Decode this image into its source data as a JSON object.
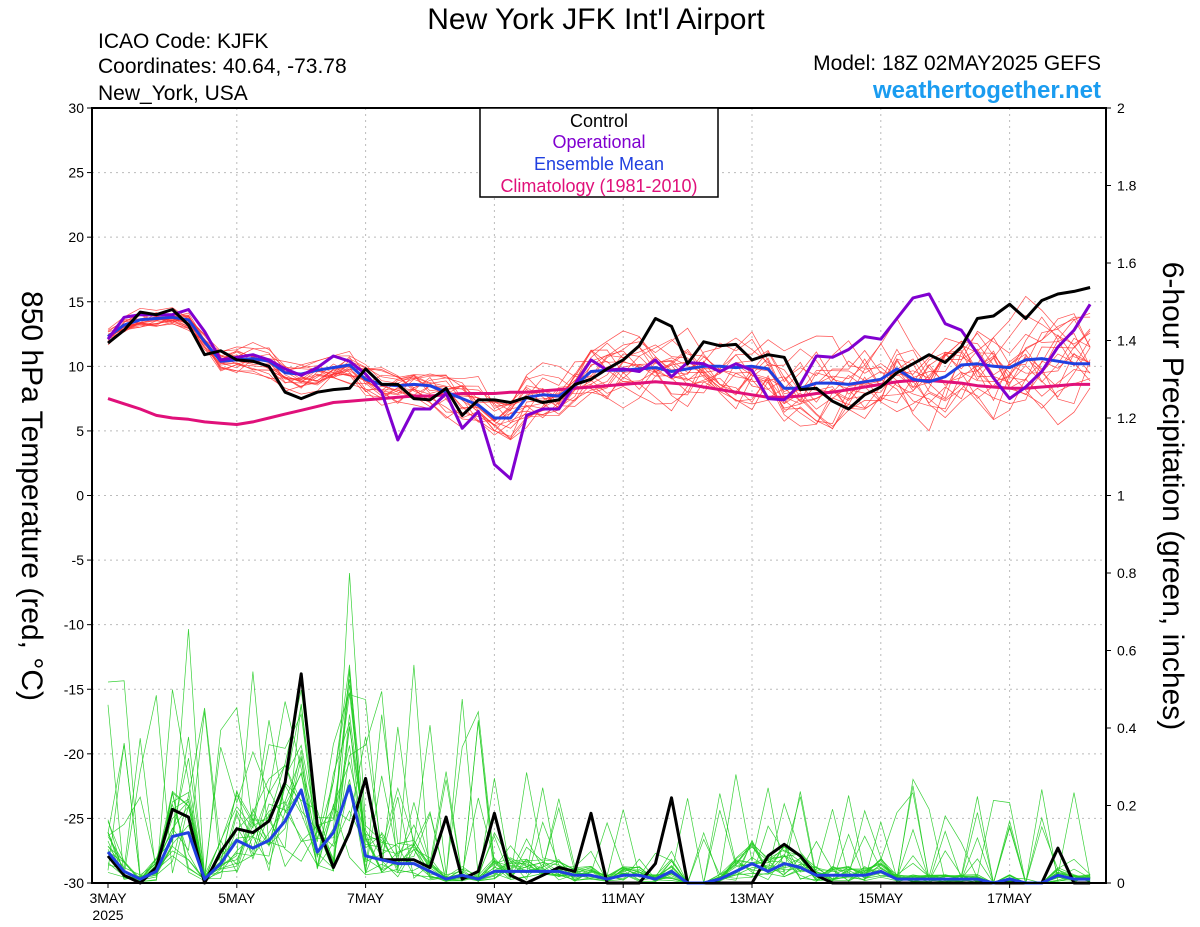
{
  "header": {
    "title": "New York JFK Int'l Airport",
    "icao": "ICAO Code: KJFK",
    "coords": "Coordinates: 40.64, -73.78",
    "location": "New_York, USA",
    "model": "Model: 18Z 02MAY2025 GEFS",
    "site": "weathertogether.net"
  },
  "colors": {
    "control": "#000000",
    "operational": "#8000d0",
    "mean": "#2040e0",
    "climatology": "#e0107a",
    "members_temp": "#ff3030",
    "members_precip": "#22cc22",
    "site": "#1a9cf0"
  },
  "chart_data": {
    "type": "line",
    "title": "New York JFK Int'l Airport",
    "ylabel_left": "850 hPa Temperature (red, °C)",
    "ylabel_right": "6-hour Precipitation (green, inches)",
    "x_start": "2025-05-03",
    "x_step_hours": 6,
    "ylim_left": [
      -30,
      30
    ],
    "yticks_left": [
      "30",
      "25",
      "20",
      "15",
      "10",
      "5",
      "0",
      "-5",
      "-10",
      "-15",
      "-20",
      "-25",
      "-30"
    ],
    "ylim_right": [
      0,
      2
    ],
    "yticks_right": [
      "2",
      "1.8",
      "1.6",
      "1.4",
      "1.2",
      "1",
      "0.8",
      "0.6",
      "0.4",
      "0.2",
      "0"
    ],
    "xticks": [
      {
        "label": "3MAY",
        "sub": "2025"
      },
      {
        "label": "5MAY",
        "sub": ""
      },
      {
        "label": "7MAY",
        "sub": ""
      },
      {
        "label": "9MAY",
        "sub": ""
      },
      {
        "label": "11MAY",
        "sub": ""
      },
      {
        "label": "13MAY",
        "sub": ""
      },
      {
        "label": "15MAY",
        "sub": ""
      },
      {
        "label": "17MAY",
        "sub": ""
      }
    ],
    "grid": true,
    "legend_position": "top-center",
    "legend": [
      {
        "label": "Control",
        "color": "#000000"
      },
      {
        "label": "Operational",
        "color": "#8000d0"
      },
      {
        "label": "Ensemble Mean",
        "color": "#2040e0"
      },
      {
        "label": "Climatology (1981-2010)",
        "color": "#e0107a"
      }
    ],
    "series": [
      {
        "name": "Control",
        "axis": "left",
        "values": [
          11.8,
          12.8,
          14.2,
          14.0,
          14.4,
          13.2,
          10.9,
          11.2,
          10.5,
          10.4,
          10.0,
          8.0,
          7.5,
          8.0,
          8.2,
          8.3,
          9.8,
          8.6,
          8.6,
          7.5,
          7.4,
          8.3,
          6.2,
          7.4,
          7.4,
          7.2,
          7.6,
          7.2,
          7.4,
          8.6,
          9.0,
          9.8,
          10.5,
          11.6,
          13.7,
          13.1,
          10.2,
          11.9,
          11.6,
          11.7,
          10.5,
          10.9,
          10.7,
          8.2,
          8.3,
          7.3,
          6.7,
          7.8,
          8.4,
          9.5,
          10.2,
          10.9,
          10.3,
          11.5,
          13.7,
          13.9,
          14.8,
          13.7,
          15.1,
          15.6,
          15.8,
          16.1
        ]
      },
      {
        "name": "Operational",
        "axis": "left",
        "values": [
          12.1,
          13.8,
          14.0,
          14.0,
          14.0,
          14.4,
          12.7,
          10.5,
          10.7,
          10.9,
          10.5,
          9.8,
          9.3,
          9.9,
          10.8,
          10.4,
          9.4,
          8.0,
          4.3,
          6.7,
          6.7,
          7.9,
          5.2,
          6.5,
          2.4,
          1.3,
          6.2,
          6.7,
          6.7,
          8.6,
          10.5,
          9.7,
          9.8,
          9.6,
          10.5,
          9.2,
          10.3,
          10.2,
          9.6,
          10.2,
          9.7,
          7.5,
          7.4,
          8.6,
          10.8,
          10.7,
          11.3,
          12.3,
          12.1,
          13.7,
          15.3,
          15.6,
          13.3,
          12.8,
          11.0,
          9.1,
          7.5,
          8.4,
          9.6,
          11.5,
          12.8,
          14.8
        ]
      },
      {
        "name": "Ensemble Mean",
        "axis": "left",
        "values": [
          12.3,
          13.2,
          13.6,
          13.7,
          13.8,
          13.6,
          11.9,
          10.4,
          10.5,
          10.6,
          10.4,
          9.5,
          9.4,
          9.7,
          9.9,
          10.1,
          9.0,
          8.6,
          8.5,
          8.6,
          8.5,
          8.0,
          7.5,
          7.0,
          6.0,
          6.0,
          7.6,
          7.8,
          7.7,
          8.5,
          9.6,
          9.7,
          9.7,
          9.8,
          9.9,
          9.6,
          9.8,
          10.0,
          10.0,
          9.9,
          10.0,
          9.8,
          8.3,
          8.3,
          8.7,
          8.7,
          8.6,
          8.8,
          9.0,
          9.8,
          9.0,
          8.8,
          9.2,
          10.1,
          10.2,
          10.0,
          9.9,
          10.5,
          10.6,
          10.4,
          10.2,
          10.2
        ]
      },
      {
        "name": "Climatology (1981-2010)",
        "axis": "left",
        "values": [
          7.5,
          7.1,
          6.7,
          6.2,
          6.0,
          5.9,
          5.7,
          5.6,
          5.5,
          5.7,
          6.0,
          6.3,
          6.6,
          6.9,
          7.2,
          7.3,
          7.4,
          7.5,
          7.6,
          7.7,
          7.7,
          7.8,
          7.9,
          7.9,
          7.9,
          8.0,
          8.0,
          8.1,
          8.2,
          8.3,
          8.4,
          8.5,
          8.6,
          8.7,
          8.8,
          8.7,
          8.6,
          8.4,
          8.2,
          8.0,
          7.8,
          7.6,
          7.6,
          7.7,
          7.9,
          8.0,
          8.2,
          8.4,
          8.6,
          8.8,
          8.9,
          8.9,
          8.8,
          8.7,
          8.5,
          8.4,
          8.3,
          8.3,
          8.4,
          8.5,
          8.6,
          8.6
        ]
      },
      {
        "name": "Control",
        "axis": "right",
        "values": [
          0.07,
          0.02,
          0.0,
          0.04,
          0.19,
          0.17,
          0.0,
          0.08,
          0.14,
          0.13,
          0.16,
          0.26,
          0.54,
          0.15,
          0.04,
          0.13,
          0.27,
          0.06,
          0.06,
          0.06,
          0.04,
          0.17,
          0.01,
          0.03,
          0.18,
          0.02,
          0.0,
          0.02,
          0.04,
          0.03,
          0.18,
          0.0,
          0.0,
          0.0,
          0.05,
          0.22,
          0.0,
          0.0,
          0.0,
          0.0,
          0.0,
          0.07,
          0.1,
          0.07,
          0.02,
          0.0,
          0.0,
          0.0,
          0.0,
          0.0,
          0.0,
          0.0,
          0.0,
          0.0,
          0.0,
          0.0,
          0.0,
          0.0,
          0.0,
          0.09,
          0.0,
          0.0
        ]
      },
      {
        "name": "Ensemble Mean",
        "axis": "right",
        "values": [
          0.08,
          0.03,
          0.01,
          0.03,
          0.12,
          0.13,
          0.01,
          0.05,
          0.11,
          0.09,
          0.11,
          0.16,
          0.24,
          0.08,
          0.13,
          0.25,
          0.07,
          0.06,
          0.05,
          0.05,
          0.03,
          0.01,
          0.02,
          0.01,
          0.03,
          0.03,
          0.03,
          0.03,
          0.03,
          0.02,
          0.02,
          0.01,
          0.02,
          0.02,
          0.01,
          0.03,
          0.0,
          0.0,
          0.01,
          0.03,
          0.05,
          0.03,
          0.05,
          0.04,
          0.02,
          0.02,
          0.02,
          0.02,
          0.03,
          0.01,
          0.01,
          0.01,
          0.01,
          0.01,
          0.01,
          0.0,
          0.01,
          0.0,
          0.0,
          0.02,
          0.01,
          0.01
        ]
      }
    ]
  }
}
